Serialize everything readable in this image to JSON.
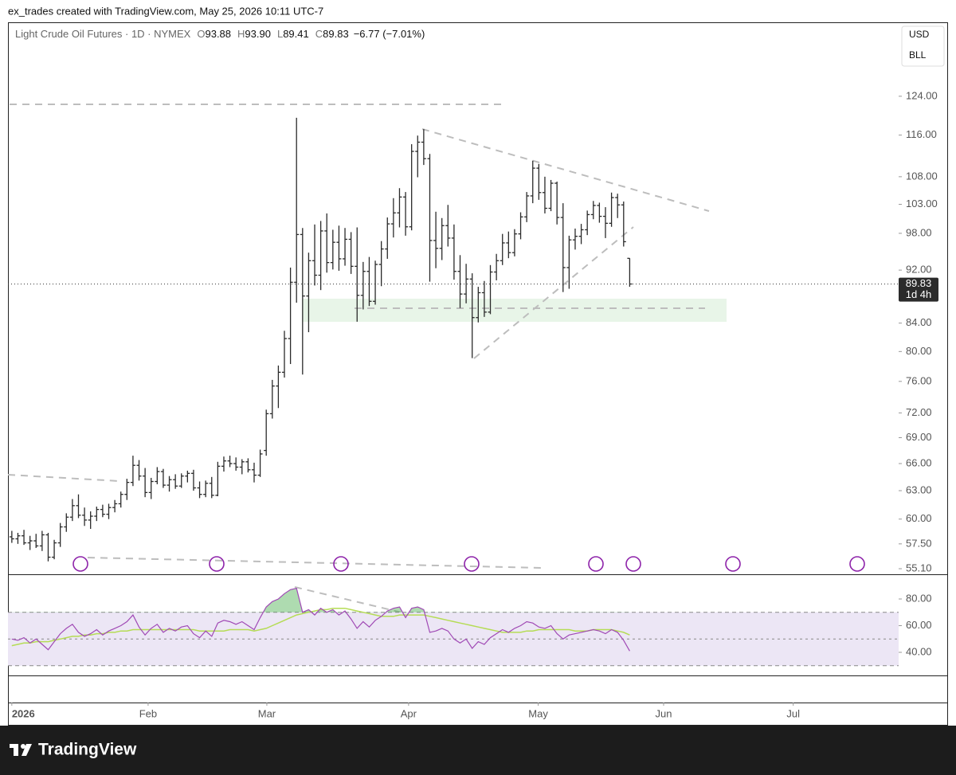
{
  "header": "ex_trades created with TradingView.com, May 25, 2026 10:11 UTC-7",
  "logo": "TradingView",
  "chart_data": {
    "type": "ohlc",
    "title": "Light Crude Oil Futures · 1D · NYMEX",
    "legend": [
      {
        "label": "O",
        "value": "93.88"
      },
      {
        "label": "H",
        "value": "93.90"
      },
      {
        "label": "L",
        "value": "89.41"
      },
      {
        "label": "C",
        "value": "89.83"
      }
    ],
    "change": "−6.77 (−7.01%)",
    "currency": "USD",
    "unit": "BLL",
    "color": "#2a2a2a",
    "yscale": "log",
    "ylim": [
      54.65,
      140.4
    ],
    "yticks": [
      {
        "value": 124,
        "label": "124.00"
      },
      {
        "value": 116,
        "label": "116.00"
      },
      {
        "value": 108,
        "label": "108.00"
      },
      {
        "value": 103,
        "label": "103.00"
      },
      {
        "value": 98,
        "label": "98.00"
      },
      {
        "value": 92,
        "label": "92.00"
      },
      {
        "value": 84,
        "label": "84.00"
      },
      {
        "value": 80,
        "label": "80.00"
      },
      {
        "value": 76,
        "label": "76.00"
      },
      {
        "value": 72,
        "label": "72.00"
      },
      {
        "value": 69,
        "label": "69.00"
      },
      {
        "value": 66,
        "label": "66.00"
      },
      {
        "value": 63,
        "label": "63.00"
      },
      {
        "value": 60,
        "label": "60.00"
      },
      {
        "value": 57.5,
        "label": "57.50"
      },
      {
        "value": 55.1,
        "label": "55.10"
      }
    ],
    "xlim": [
      -0.9,
      146.4
    ],
    "xticks": [
      {
        "value": 0,
        "label": "2026"
      },
      {
        "value": 22.5,
        "label": "Feb"
      },
      {
        "value": 42.1,
        "label": "Mar"
      },
      {
        "value": 65.5,
        "label": "Apr"
      },
      {
        "value": 86.9,
        "label": "May"
      },
      {
        "value": 107.6,
        "label": "Jun"
      },
      {
        "value": 129,
        "label": "Jul"
      }
    ],
    "last_price": {
      "value": 89.83,
      "label": "89.83"
    },
    "countdown": "1d 4h",
    "ohlc": [
      [
        58.2,
        58.8,
        57.6,
        58.0
      ],
      [
        58.0,
        58.6,
        57.5,
        58.3
      ],
      [
        58.3,
        58.9,
        57.4,
        57.6
      ],
      [
        57.6,
        58.3,
        56.9,
        57.8
      ],
      [
        57.8,
        58.5,
        57.1,
        57.3
      ],
      [
        57.3,
        58.8,
        56.8,
        58.4
      ],
      [
        58.4,
        58.6,
        55.8,
        56.2
      ],
      [
        56.2,
        57.9,
        56.0,
        57.6
      ],
      [
        57.6,
        59.6,
        57.2,
        59.2
      ],
      [
        59.2,
        60.6,
        58.7,
        60.2
      ],
      [
        60.2,
        62.1,
        59.8,
        61.4
      ],
      [
        61.4,
        62.6,
        60.1,
        60.4
      ],
      [
        60.4,
        61.2,
        59.3,
        59.9
      ],
      [
        59.9,
        60.8,
        59.0,
        60.3
      ],
      [
        60.3,
        61.3,
        59.8,
        61.0
      ],
      [
        61.0,
        61.5,
        60.2,
        60.5
      ],
      [
        60.5,
        61.6,
        60.0,
        61.2
      ],
      [
        61.2,
        62.0,
        60.7,
        61.6
      ],
      [
        61.6,
        62.9,
        61.2,
        62.6
      ],
      [
        62.6,
        64.3,
        62.0,
        63.9
      ],
      [
        63.9,
        66.9,
        63.5,
        65.8
      ],
      [
        65.8,
        66.4,
        64.1,
        64.6
      ],
      [
        64.6,
        65.5,
        62.3,
        62.8
      ],
      [
        62.8,
        64.4,
        62.1,
        64.0
      ],
      [
        64.0,
        65.6,
        63.7,
        65.1
      ],
      [
        65.1,
        65.4,
        63.3,
        63.6
      ],
      [
        63.6,
        64.6,
        62.9,
        64.2
      ],
      [
        64.2,
        64.8,
        63.2,
        63.5
      ],
      [
        63.5,
        64.9,
        63.3,
        64.6
      ],
      [
        64.6,
        65.2,
        63.9,
        64.9
      ],
      [
        64.9,
        65.3,
        63.0,
        63.3
      ],
      [
        63.3,
        64.0,
        62.2,
        62.6
      ],
      [
        62.6,
        64.1,
        62.3,
        63.8
      ],
      [
        63.8,
        64.5,
        62.2,
        62.5
      ],
      [
        62.5,
        66.2,
        62.4,
        65.7
      ],
      [
        65.7,
        66.8,
        65.1,
        66.3
      ],
      [
        66.3,
        66.9,
        65.6,
        66.0
      ],
      [
        66.0,
        66.7,
        65.2,
        65.6
      ],
      [
        65.6,
        66.5,
        64.8,
        66.2
      ],
      [
        66.2,
        66.6,
        65.0,
        65.3
      ],
      [
        65.3,
        66.1,
        63.9,
        64.7
      ],
      [
        64.7,
        67.6,
        64.5,
        67.1
      ],
      [
        67.5,
        72.4,
        66.9,
        71.9
      ],
      [
        71.9,
        76.2,
        71.3,
        75.4
      ],
      [
        75.4,
        78.1,
        72.6,
        77.2
      ],
      [
        77.2,
        82.9,
        76.5,
        81.8
      ],
      [
        81.8,
        92.4,
        78.3,
        90.1
      ],
      [
        90.1,
        119.5,
        87.0,
        97.8
      ],
      [
        97.8,
        98.9,
        76.9,
        88.0
      ],
      [
        88.0,
        94.8,
        82.7,
        93.5
      ],
      [
        93.5,
        99.5,
        89.6,
        91.2
      ],
      [
        91.2,
        100.1,
        88.9,
        98.4
      ],
      [
        98.4,
        101.4,
        91.6,
        93.2
      ],
      [
        93.2,
        98.6,
        92.1,
        96.5
      ],
      [
        96.5,
        99.3,
        91.9,
        93.8
      ],
      [
        93.8,
        98.9,
        92.7,
        97.0
      ],
      [
        97.0,
        98.2,
        91.4,
        92.6
      ],
      [
        92.6,
        99.0,
        84.2,
        88.1
      ],
      [
        88.1,
        93.3,
        86.0,
        91.8
      ],
      [
        91.8,
        94.1,
        86.5,
        87.2
      ],
      [
        87.2,
        93.5,
        86.7,
        92.9
      ],
      [
        92.9,
        96.7,
        89.5,
        95.4
      ],
      [
        95.4,
        100.7,
        93.8,
        99.6
      ],
      [
        99.6,
        104.1,
        97.3,
        101.5
      ],
      [
        101.5,
        105.9,
        99.0,
        104.3
      ],
      [
        104.3,
        105.2,
        97.6,
        99.1
      ],
      [
        99.1,
        114.2,
        98.5,
        112.8
      ],
      [
        112.8,
        115.9,
        107.9,
        114.6
      ],
      [
        114.6,
        117.2,
        110.2,
        111.4
      ],
      [
        111.4,
        112.3,
        90.2,
        96.8
      ],
      [
        96.8,
        101.7,
        92.3,
        95.5
      ],
      [
        95.5,
        100.6,
        93.6,
        99.3
      ],
      [
        99.3,
        102.9,
        95.8,
        97.2
      ],
      [
        97.2,
        99.5,
        90.5,
        91.8
      ],
      [
        91.8,
        94.4,
        86.2,
        88.3
      ],
      [
        88.3,
        93.0,
        86.9,
        90.6
      ],
      [
        90.6,
        91.5,
        79.1,
        84.8
      ],
      [
        84.8,
        89.4,
        84.1,
        88.5
      ],
      [
        88.5,
        90.3,
        84.9,
        85.6
      ],
      [
        85.6,
        92.8,
        85.3,
        91.7
      ],
      [
        91.7,
        94.6,
        90.4,
        93.5
      ],
      [
        93.5,
        97.9,
        92.8,
        96.4
      ],
      [
        96.4,
        98.3,
        93.9,
        94.8
      ],
      [
        94.8,
        98.7,
        94.2,
        97.9
      ],
      [
        97.9,
        101.6,
        97.0,
        100.8
      ],
      [
        100.8,
        105.2,
        99.9,
        104.5
      ],
      [
        104.5,
        111.0,
        103.2,
        109.6
      ],
      [
        109.6,
        110.4,
        103.8,
        105.1
      ],
      [
        105.1,
        108.0,
        101.4,
        102.3
      ],
      [
        102.3,
        107.4,
        101.8,
        106.8
      ],
      [
        106.8,
        107.1,
        99.5,
        100.7
      ],
      [
        100.7,
        103.2,
        88.6,
        92.4
      ],
      [
        92.4,
        97.6,
        89.1,
        96.9
      ],
      [
        96.9,
        98.8,
        95.3,
        97.5
      ],
      [
        97.5,
        99.6,
        96.2,
        98.6
      ],
      [
        98.6,
        101.9,
        97.7,
        101.2
      ],
      [
        101.2,
        103.6,
        100.4,
        102.8
      ],
      [
        102.8,
        103.3,
        99.8,
        100.9
      ],
      [
        100.9,
        102.5,
        97.2,
        99.7
      ],
      [
        99.7,
        105.1,
        99.1,
        104.2
      ],
      [
        104.2,
        104.9,
        100.6,
        102.9
      ],
      [
        102.9,
        103.5,
        95.8,
        96.6
      ],
      [
        93.88,
        93.9,
        89.41,
        89.83
      ]
    ],
    "rsi": {
      "color": "#a04ab5",
      "ma_color": "#b5dc55",
      "band_color": "#ece6f5",
      "ylim": [
        22.7,
        97.9
      ],
      "yticks": [
        {
          "value": 80,
          "label": "80.00"
        },
        {
          "value": 60,
          "label": "60.00"
        },
        {
          "value": 40,
          "label": "40.00"
        }
      ],
      "levels": [
        70,
        50,
        30
      ],
      "values": [
        50,
        49,
        51,
        47,
        50,
        46,
        42,
        48,
        54,
        58,
        61,
        55,
        52,
        54,
        57,
        53,
        56,
        58,
        60,
        63,
        68,
        59,
        53,
        58,
        61,
        55,
        58,
        56,
        59,
        60,
        54,
        51,
        56,
        52,
        62,
        64,
        63,
        61,
        63,
        60,
        57,
        66,
        74,
        78,
        80,
        84,
        87,
        88,
        70,
        72,
        68,
        73,
        70,
        72,
        68,
        71,
        65,
        58,
        63,
        59,
        64,
        67,
        71,
        73,
        74,
        66,
        73,
        74,
        72,
        55,
        56,
        58,
        56,
        50,
        47,
        50,
        43,
        48,
        46,
        51,
        54,
        57,
        55,
        58,
        60,
        63,
        62,
        59,
        58,
        60,
        54,
        50,
        53,
        54,
        55,
        56,
        57,
        56,
        54,
        57,
        55,
        49,
        41
      ],
      "ma": [
        45,
        46,
        47,
        47,
        48,
        48,
        48,
        49,
        50,
        51,
        52,
        52,
        53,
        53,
        54,
        54,
        55,
        55,
        56,
        56,
        57,
        57,
        57,
        57,
        57,
        57,
        57,
        57,
        57,
        57,
        57,
        56,
        56,
        56,
        56,
        56,
        57,
        57,
        57,
        57,
        56,
        57,
        58,
        60,
        62,
        64,
        66,
        68,
        69,
        70,
        71,
        72,
        72,
        73,
        73,
        73,
        72,
        71,
        70,
        69,
        68,
        67,
        67,
        67,
        68,
        68,
        68,
        68,
        68,
        67,
        66,
        65,
        64,
        63,
        62,
        61,
        60,
        59,
        58,
        57,
        56,
        55,
        55,
        55,
        55,
        56,
        56,
        57,
        57,
        57,
        57,
        57,
        57,
        56,
        56,
        56,
        57,
        57,
        57,
        57,
        56,
        55,
        53
      ]
    }
  }
}
